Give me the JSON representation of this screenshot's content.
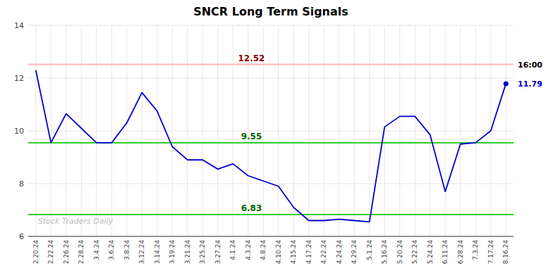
{
  "chart_data": {
    "type": "line",
    "title": "SNCR Long Term Signals",
    "categories": [
      "2.20.24",
      "2.22.24",
      "2.26.24",
      "2.28.24",
      "3.4.24",
      "3.6.24",
      "3.8.24",
      "3.12.24",
      "3.14.24",
      "3.19.24",
      "3.21.24",
      "3.25.24",
      "3.27.24",
      "4.1.24",
      "4.3.24",
      "4.8.24",
      "4.10.24",
      "4.15.24",
      "4.17.24",
      "4.22.24",
      "4.24.24",
      "4.29.24",
      "5.1.24",
      "5.16.24",
      "5.20.24",
      "5.22.24",
      "5.24.24",
      "6.11.24",
      "6.28.24",
      "7.3.24",
      "7.17.24",
      "8.16.24"
    ],
    "values": [
      12.3,
      9.55,
      10.65,
      10.1,
      9.55,
      9.55,
      10.3,
      11.45,
      10.75,
      9.4,
      8.9,
      8.9,
      8.55,
      8.75,
      8.3,
      8.1,
      7.9,
      7.1,
      6.6,
      6.6,
      6.65,
      6.6,
      6.55,
      10.15,
      10.55,
      10.55,
      9.85,
      7.7,
      9.5,
      9.55,
      10.0,
      11.79
    ],
    "color": "#0000cc",
    "ylim": [
      6,
      14
    ],
    "yticks": [
      6,
      8,
      10,
      12,
      14
    ],
    "grid": true,
    "hlines": [
      {
        "value": 12.52,
        "label": "12.52",
        "color": "#ffb3b3",
        "label_color": "#880000"
      },
      {
        "value": 9.55,
        "label": "9.55",
        "color": "#33cc33",
        "label_color": "#006600"
      },
      {
        "value": 6.83,
        "label": "6.83",
        "color": "#33cc33",
        "label_color": "#006600"
      }
    ],
    "annotations": [
      {
        "text": "16:00",
        "y": 12.52,
        "color": "#000000"
      },
      {
        "text": "11.79",
        "y": 11.79,
        "color": "#0000cc"
      }
    ],
    "watermark": {
      "text": "Stock Traders Daily",
      "color": "#bbbbbb"
    }
  }
}
